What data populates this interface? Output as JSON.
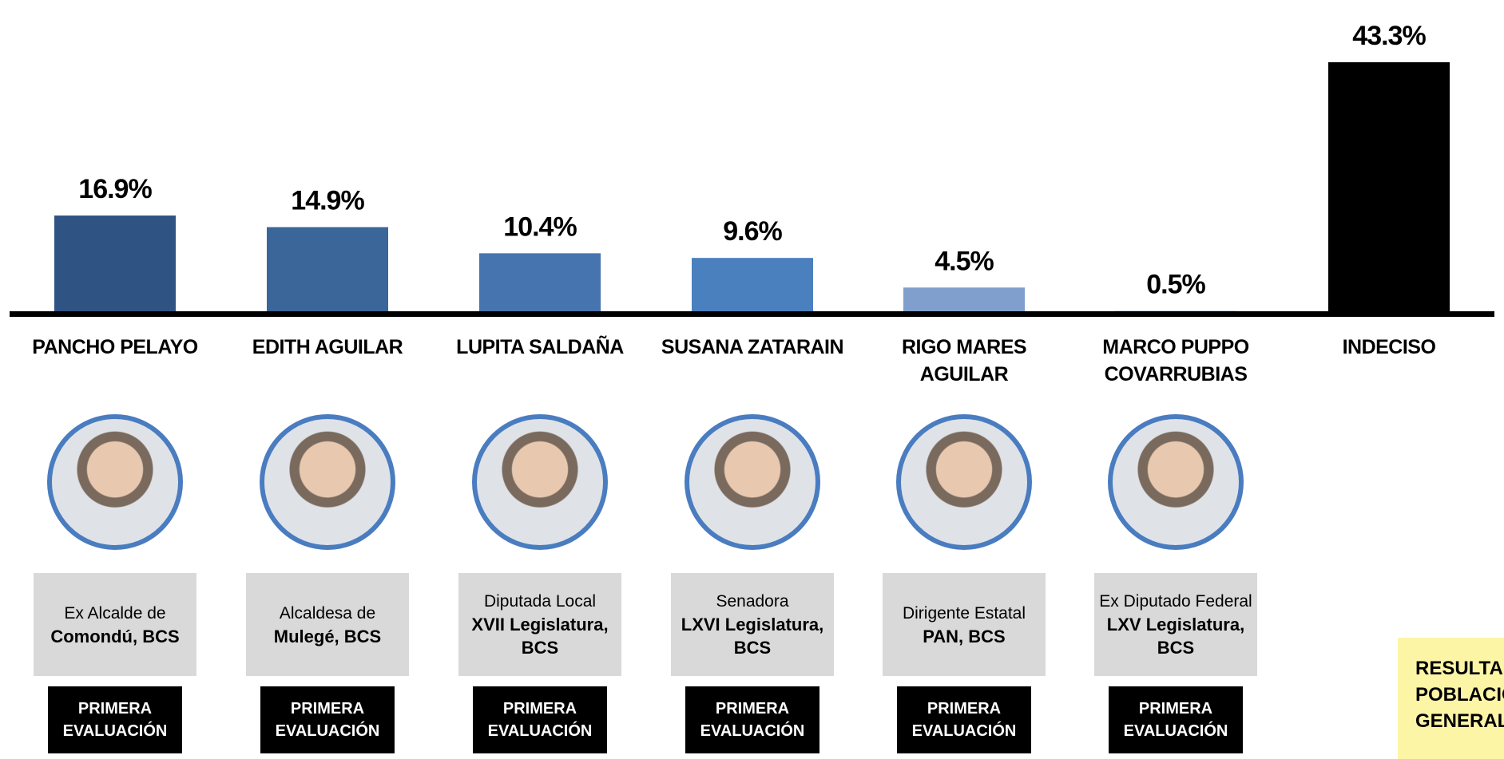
{
  "chart_data": {
    "type": "bar",
    "categories": [
      "PANCHO PELAYO",
      "EDITH AGUILAR",
      "LUPITA SALDAÑA",
      "SUSANA ZATARAIN",
      "RIGO MARES AGUILAR",
      "MARCO PUPPO COVARRUBIAS",
      "INDECISO"
    ],
    "values": [
      16.9,
      14.9,
      10.4,
      9.6,
      4.5,
      0.5,
      43.3
    ],
    "value_labels": [
      "16.9%",
      "14.9%",
      "10.4%",
      "9.6%",
      "4.5%",
      "0.5%",
      "43.3%"
    ],
    "colors": [
      "#2f5483",
      "#3a6699",
      "#4674ae",
      "#4b80bf",
      "#809fcd",
      "#a9c0e0",
      "#000000"
    ],
    "ylim": [
      0,
      43.3
    ]
  },
  "roles": [
    {
      "text": "Ex Alcalde de",
      "bold": "Comondú, BCS"
    },
    {
      "text": "Alcaldesa de",
      "bold": "Mulegé, BCS"
    },
    {
      "text": "Diputada Local",
      "bold": "XVII Legislatura, BCS"
    },
    {
      "text": "Senadora",
      "bold": "LXVI Legislatura, BCS"
    },
    {
      "text": "Dirigente Estatal",
      "bold": "PAN, BCS"
    },
    {
      "text": "Ex Diputado Federal",
      "bold": "LXV Legislatura, BCS"
    }
  ],
  "badge": "PRIMERA EVALUACIÓN",
  "note": "RESULTADO POBLACIÓN GENERAL"
}
